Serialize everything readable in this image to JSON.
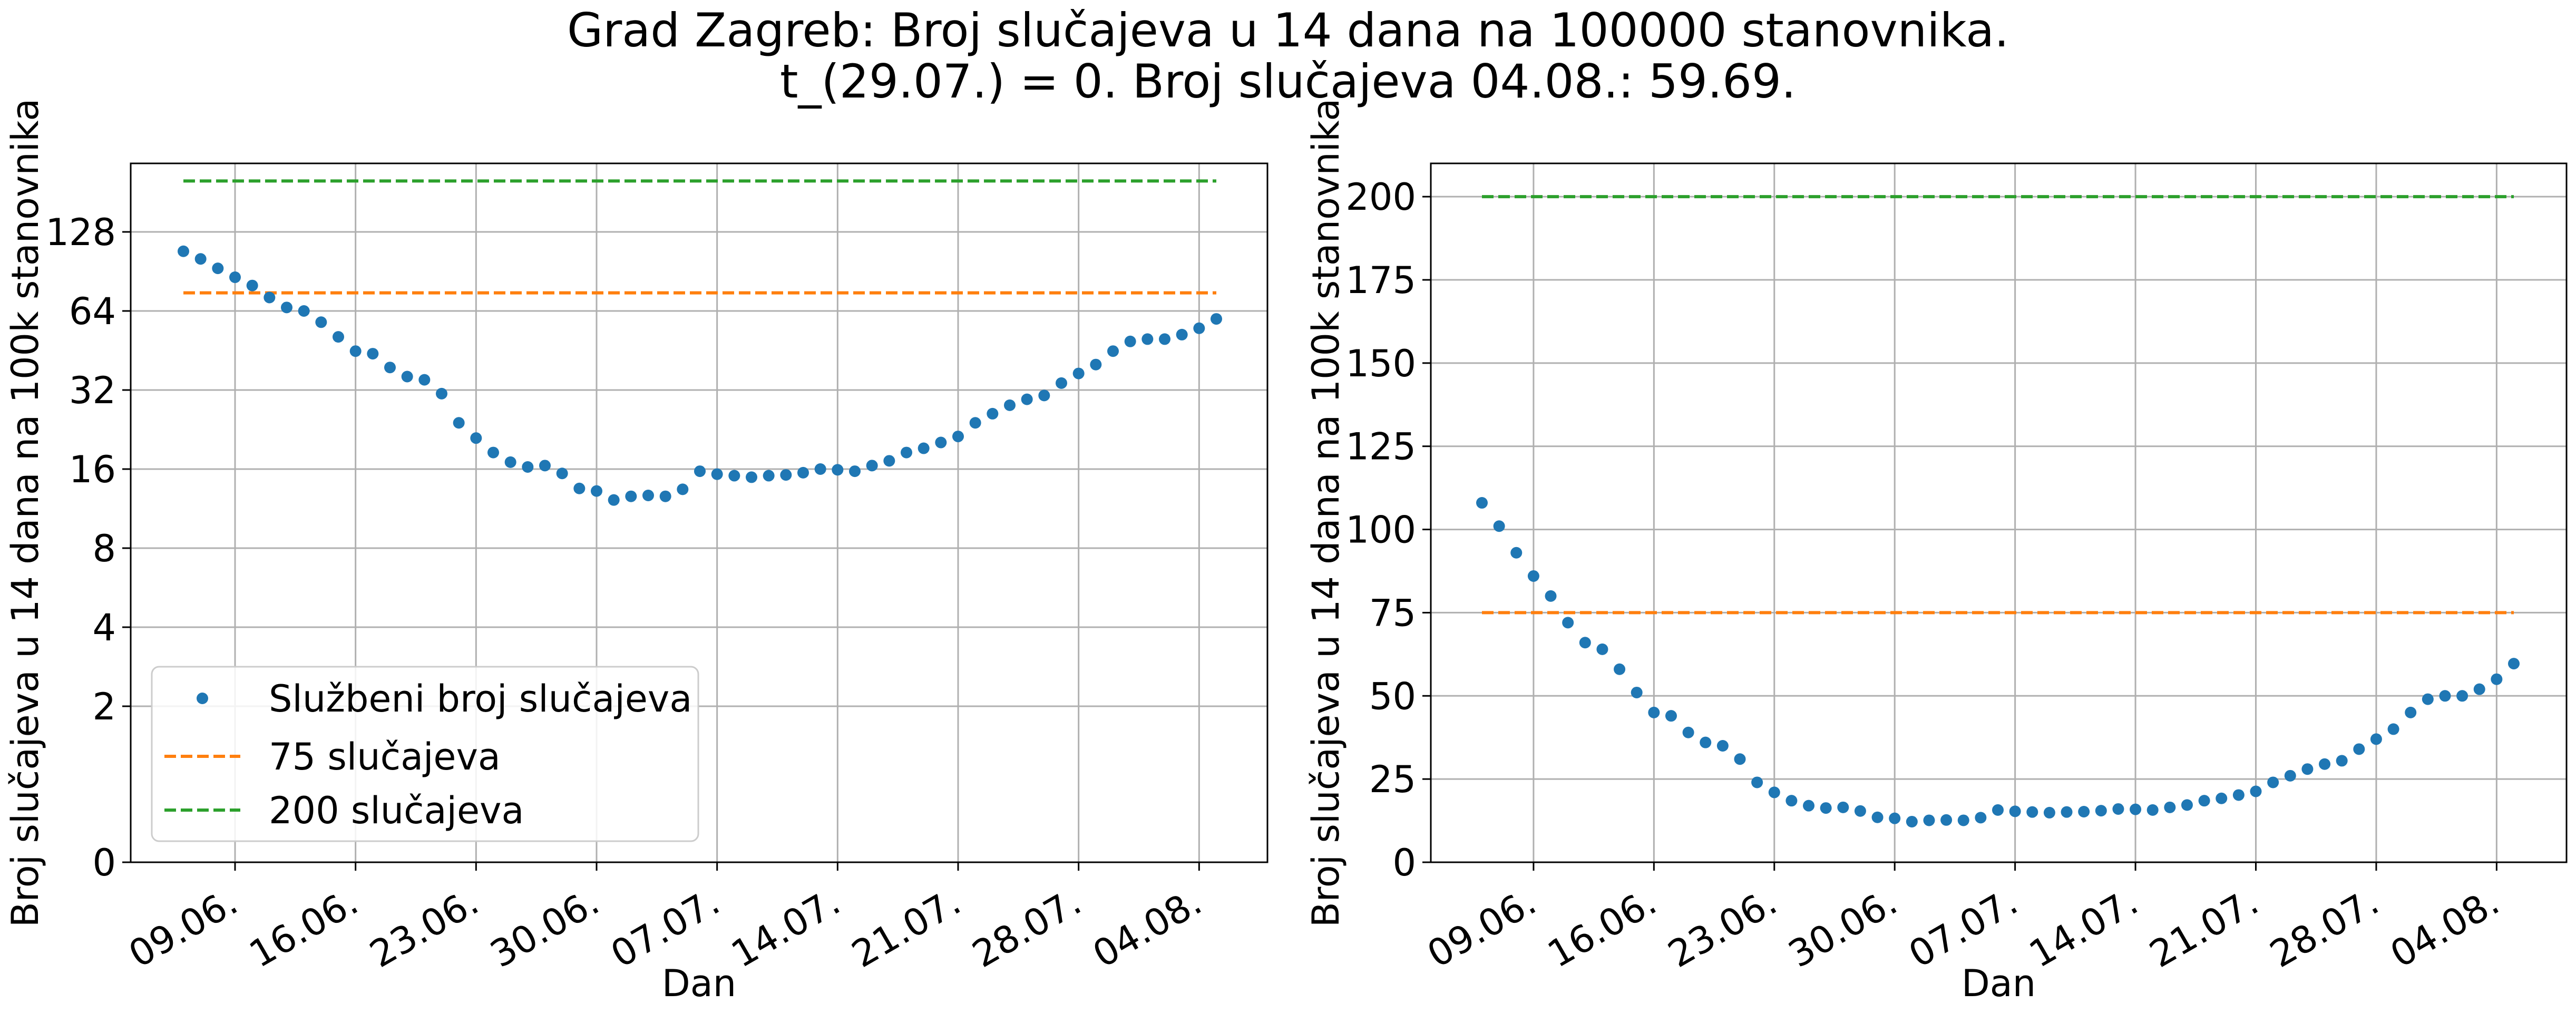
{
  "figure": {
    "title_line1": "Grad Zagreb: Broj slučajeva u 14 dana na 100000 stanovnika.",
    "title_line2": "t_(29.07.) = 0. Broj slučajeva 04.08.: 59.69."
  },
  "chart_data": [
    {
      "type": "scatter",
      "panel": "left",
      "yscale": "log2",
      "xlabel": "Dan",
      "ylabel": "Broj slučajeva u 14 dana na 100k stanovnika",
      "xticks": [
        "09.06.",
        "16.06.",
        "23.06.",
        "30.06.",
        "07.07.",
        "14.07.",
        "21.07.",
        "28.07.",
        "04.08."
      ],
      "yticks": [
        "0",
        "2",
        "4",
        "8",
        "16",
        "32",
        "64",
        "128"
      ],
      "grid": true,
      "legend_position": "lower-left",
      "legend": [
        "Službeni broj slučajeva",
        "75 slučajeva",
        "200 slučajeva"
      ],
      "x_start": "06.06.",
      "x_end": "04.08.",
      "series": [
        {
          "name": "Službeni broj slučajeva",
          "style": "points",
          "color": "#1f77b4",
          "values": [
            108,
            101,
            93,
            86,
            80,
            72,
            66,
            64,
            58,
            51,
            45,
            44,
            39,
            36,
            35,
            31,
            24,
            21,
            18.5,
            17,
            16.3,
            16.5,
            15.4,
            13.5,
            13.2,
            12.2,
            12.6,
            12.7,
            12.6,
            13.4,
            15.7,
            15.3,
            15.1,
            14.9,
            15.1,
            15.2,
            15.5,
            16,
            15.9,
            15.7,
            16.5,
            17.2,
            18.5,
            19.2,
            20.2,
            21.3,
            24,
            26,
            28,
            29.5,
            30.5,
            34,
            37,
            40,
            45,
            49,
            50,
            50,
            52,
            55,
            59.69
          ]
        },
        {
          "name": "75 slučajeva",
          "style": "dashed",
          "color": "#ff7f0e",
          "value": 75
        },
        {
          "name": "200 slučajeva",
          "style": "dashed",
          "color": "#2ca02c",
          "value": 200
        }
      ]
    },
    {
      "type": "scatter",
      "panel": "right",
      "yscale": "linear",
      "xlabel": "Dan",
      "ylabel": "Broj slučajeva u 14 dana na 100k stanovnika",
      "xticks": [
        "09.06.",
        "16.06.",
        "23.06.",
        "30.06.",
        "07.07.",
        "14.07.",
        "21.07.",
        "28.07.",
        "04.08."
      ],
      "yticks": [
        "0",
        "25",
        "50",
        "75",
        "100",
        "125",
        "150",
        "175",
        "200"
      ],
      "ylim": [
        0,
        210
      ],
      "grid": true,
      "x_start": "06.06.",
      "x_end": "04.08.",
      "series": [
        {
          "name": "Službeni broj slučajeva",
          "style": "points",
          "color": "#1f77b4",
          "values": [
            108,
            101,
            93,
            86,
            80,
            72,
            66,
            64,
            58,
            51,
            45,
            44,
            39,
            36,
            35,
            31,
            24,
            21,
            18.5,
            17,
            16.3,
            16.5,
            15.4,
            13.5,
            13.2,
            12.2,
            12.6,
            12.7,
            12.6,
            13.4,
            15.7,
            15.3,
            15.1,
            14.9,
            15.1,
            15.2,
            15.5,
            16,
            15.9,
            15.7,
            16.5,
            17.2,
            18.5,
            19.2,
            20.2,
            21.3,
            24,
            26,
            28,
            29.5,
            30.5,
            34,
            37,
            40,
            45,
            49,
            50,
            50,
            52,
            55,
            59.69
          ]
        },
        {
          "name": "75 slučajeva",
          "style": "dashed",
          "color": "#ff7f0e",
          "value": 75
        },
        {
          "name": "200 slučajeva",
          "style": "dashed",
          "color": "#2ca02c",
          "value": 200
        }
      ]
    }
  ]
}
